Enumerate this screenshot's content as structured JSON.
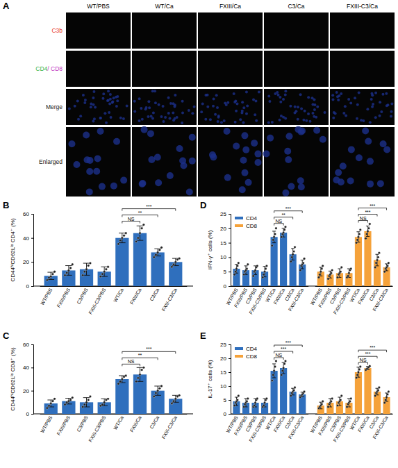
{
  "image_panel": {
    "title": "A",
    "columns": [
      "WT/PBS",
      "WT/Ca",
      "FXIII/Ca",
      "C3/Ca",
      "FXIII-C3/Ca"
    ],
    "rows": [
      {
        "parts": [
          {
            "text": "C3b",
            "color": "#e8332a"
          }
        ]
      },
      {
        "parts": [
          {
            "text": "CD4",
            "color": "#3ab54a"
          },
          {
            "text": "/ CD8",
            "color": "#c23bc2"
          }
        ]
      },
      {
        "parts": [
          {
            "text": "Merge",
            "color": "#222222"
          }
        ]
      },
      {
        "parts": [
          {
            "text": "Enlarged",
            "color": "#222222"
          }
        ]
      }
    ]
  },
  "chart_data": [
    {
      "type": "bar",
      "title": "B",
      "y_label": "CD44ʰⁱCD62Lˡᵒ CD4⁺ (%)",
      "categories": [
        "WT/PBS",
        "FXIII/PBS",
        "C3/PBS",
        "FXIII-C3/PBS",
        "WT/Ca",
        "FXIII/Ca",
        "C3/Ca",
        "FXIII-C3/Ca"
      ],
      "values": [
        8.5,
        13,
        14,
        12,
        40,
        44,
        28,
        20
      ],
      "errors": [
        3,
        4,
        5,
        4,
        4,
        6,
        3,
        3
      ],
      "points": [
        [
          5,
          7,
          8,
          10,
          12
        ],
        [
          9,
          11,
          13,
          15,
          18
        ],
        [
          9,
          12,
          14,
          17,
          19
        ],
        [
          8,
          10,
          12,
          14,
          16
        ],
        [
          35,
          38,
          40,
          42,
          44
        ],
        [
          37,
          40,
          44,
          48,
          51
        ],
        [
          24,
          26,
          28,
          30,
          32
        ],
        [
          16,
          18,
          20,
          22,
          23
        ]
      ],
      "color": "#2f6fbd",
      "ylim": [
        0,
        60
      ],
      "yticks": [
        0,
        20,
        40,
        60
      ],
      "annotations": [
        {
          "from": "WT/Ca",
          "to": "FXIII/Ca",
          "text": "NS"
        },
        {
          "from": "WT/Ca",
          "to": "C3/Ca",
          "text": "**"
        },
        {
          "from": "WT/Ca",
          "to": "FXIII-C3/Ca",
          "text": "***"
        }
      ]
    },
    {
      "type": "bar",
      "title": "C",
      "y_label": "CD44ʰⁱCD62Lˡᵒ CD8⁺ (%)",
      "categories": [
        "WT/PBS",
        "FXIII/PBS",
        "C3/PBS",
        "FXIII-C3/PBS",
        "WT/Ca",
        "FXIII/Ca",
        "C3/Ca",
        "FXIII-C3/Ca"
      ],
      "values": [
        9,
        11,
        10,
        10,
        30,
        34,
        20,
        13
      ],
      "errors": [
        3,
        2.5,
        4,
        3,
        3,
        6,
        4,
        3
      ],
      "points": [
        [
          5,
          7,
          9,
          11,
          13
        ],
        [
          8,
          10,
          11,
          12,
          14
        ],
        [
          6,
          8,
          10,
          12,
          15
        ],
        [
          7,
          8,
          10,
          12,
          13
        ],
        [
          26,
          28,
          30,
          32,
          33
        ],
        [
          28,
          31,
          34,
          38,
          40
        ],
        [
          15,
          18,
          20,
          22,
          24
        ],
        [
          9,
          11,
          13,
          15,
          16
        ]
      ],
      "color": "#2f6fbd",
      "ylim": [
        0,
        60
      ],
      "yticks": [
        0,
        20,
        40,
        60
      ],
      "annotations": [
        {
          "from": "WT/Ca",
          "to": "FXIII/Ca",
          "text": "NS"
        },
        {
          "from": "WT/Ca",
          "to": "C3/Ca",
          "text": "**"
        },
        {
          "from": "WT/Ca",
          "to": "FXIII-C3/Ca",
          "text": "***"
        }
      ]
    },
    {
      "type": "bar",
      "title": "D",
      "y_label": "IFN-γ⁺ cells (%)",
      "categories": [
        "WT/PBS",
        "FXIII/PBS",
        "C3/PBS",
        "FXIII-C3/PBS",
        "WT/Ca",
        "FXIII/Ca",
        "C3/Ca",
        "FXIII-C3/Ca"
      ],
      "series": [
        {
          "name": "CD4",
          "color": "#2f6fbd",
          "values": [
            6,
            5.5,
            5.5,
            5,
            17,
            18.5,
            11,
            7.5
          ],
          "errors": [
            1.5,
            1.5,
            1.5,
            1.8,
            2,
            1.5,
            2,
            1.5
          ],
          "points": [
            [
              4,
              5,
              6,
              7,
              8
            ],
            [
              4,
              5,
              5.5,
              6,
              7.5
            ],
            [
              3.5,
              5,
              5.5,
              6.5,
              7
            ],
            [
              3,
              4,
              5,
              6,
              7
            ],
            [
              14,
              16,
              17,
              18,
              20
            ],
            [
              17,
              18,
              18.5,
              19.5,
              20.5
            ],
            [
              8.5,
              10,
              11,
              12,
              13.5
            ],
            [
              5.5,
              7,
              7.5,
              8,
              9.5
            ]
          ]
        },
        {
          "name": "CD8",
          "color": "#f5a23a",
          "values": [
            5,
            4,
            4.5,
            4.5,
            17,
            19,
            9,
            6.5
          ],
          "errors": [
            1.5,
            1.2,
            1.5,
            1.5,
            1.8,
            1.8,
            2,
            1.2
          ],
          "points": [
            [
              3,
              4,
              5,
              6,
              7
            ],
            [
              2.5,
              3.5,
              4,
              4.5,
              5.5
            ],
            [
              3,
              4,
              4.5,
              5,
              6.5
            ],
            [
              3,
              3.5,
              4.5,
              5.5,
              6
            ],
            [
              15,
              16,
              17,
              18,
              19.5
            ],
            [
              16.5,
              18,
              19,
              20,
              21.5
            ],
            [
              6.5,
              8,
              9,
              10,
              11.5
            ],
            [
              5,
              6,
              6.5,
              7,
              8
            ]
          ]
        }
      ],
      "legend": "upper left",
      "ylim": [
        0,
        25
      ],
      "yticks": [
        0,
        5,
        10,
        15,
        20,
        25
      ],
      "annotations": [
        {
          "series": "CD4",
          "from": "WT/Ca",
          "to": "FXIII/Ca",
          "text": "NS"
        },
        {
          "series": "CD4",
          "from": "WT/Ca",
          "to": "C3/Ca",
          "text": "**"
        },
        {
          "series": "CD4",
          "from": "WT/Ca",
          "to": "FXIII-C3/Ca",
          "text": "***"
        },
        {
          "series": "CD8",
          "from": "WT/Ca",
          "to": "FXIII/Ca",
          "text": "NS"
        },
        {
          "series": "CD8",
          "from": "WT/Ca",
          "to": "C3/Ca",
          "text": "***"
        },
        {
          "series": "CD8",
          "from": "WT/Ca",
          "to": "FXIII-C3/Ca",
          "text": "***"
        }
      ]
    },
    {
      "type": "bar",
      "title": "E",
      "y_label": "IL-17⁺ cells (%)",
      "categories": [
        "WT/PBS",
        "FXIII/PBS",
        "C3/PBS",
        "FXIII-C3/PBS",
        "WT/Ca",
        "FXIII/Ca",
        "C3/Ca",
        "FXIII-C3/Ca"
      ],
      "series": [
        {
          "name": "CD4",
          "color": "#2f6fbd",
          "values": [
            4.5,
            4,
            4,
            4,
            15.5,
            16.5,
            8,
            7
          ],
          "errors": [
            1.5,
            1.5,
            1.5,
            1.5,
            2.5,
            2,
            1.2,
            0.8
          ],
          "points": [
            [
              3,
              4,
              4.5,
              5,
              6.5
            ],
            [
              2.5,
              3.5,
              4,
              4.5,
              5.5
            ],
            [
              2.5,
              3,
              4,
              5,
              5.5
            ],
            [
              2.5,
              3,
              4,
              5,
              5.5
            ],
            [
              12,
              14,
              15.5,
              17,
              19
            ],
            [
              14,
              15.5,
              16.5,
              18,
              19
            ],
            [
              6.5,
              7.5,
              8,
              8.5,
              9.5
            ],
            [
              6,
              6.5,
              7,
              7.5,
              8
            ]
          ]
        },
        {
          "name": "CD8",
          "color": "#f5a23a",
          "values": [
            3,
            4,
            4.5,
            4,
            15,
            16.5,
            8,
            6
          ],
          "errors": [
            1.2,
            1.5,
            1.5,
            1.5,
            1.8,
            0.6,
            1.2,
            1.5
          ],
          "points": [
            [
              2,
              2.5,
              3,
              3.5,
              4.5
            ],
            [
              2.5,
              3.5,
              4,
              4.5,
              5.5
            ],
            [
              3,
              4,
              4.5,
              5,
              6.5
            ],
            [
              2.5,
              3.5,
              4,
              4.5,
              5.5
            ],
            [
              13,
              14,
              15,
              16,
              17
            ],
            [
              15.8,
              16.2,
              16.5,
              16.8,
              17.2
            ],
            [
              6.5,
              7.5,
              8,
              8.5,
              9.5
            ],
            [
              4,
              5,
              6,
              7,
              8
            ]
          ]
        }
      ],
      "legend": "upper left",
      "ylim": [
        0,
        25
      ],
      "yticks": [
        0,
        5,
        10,
        15,
        20,
        25
      ],
      "annotations": [
        {
          "series": "CD4",
          "from": "WT/Ca",
          "to": "FXIII/Ca",
          "text": "NS"
        },
        {
          "series": "CD4",
          "from": "WT/Ca",
          "to": "C3/Ca",
          "text": "***"
        },
        {
          "series": "CD4",
          "from": "WT/Ca",
          "to": "FXIII-C3/Ca",
          "text": "***"
        },
        {
          "series": "CD8",
          "from": "WT/Ca",
          "to": "FXIII/Ca",
          "text": "NS"
        },
        {
          "series": "CD8",
          "from": "WT/Ca",
          "to": "C3/Ca",
          "text": "***"
        },
        {
          "series": "CD8",
          "from": "WT/Ca",
          "to": "FXIII-C3/Ca",
          "text": "***"
        }
      ]
    }
  ]
}
